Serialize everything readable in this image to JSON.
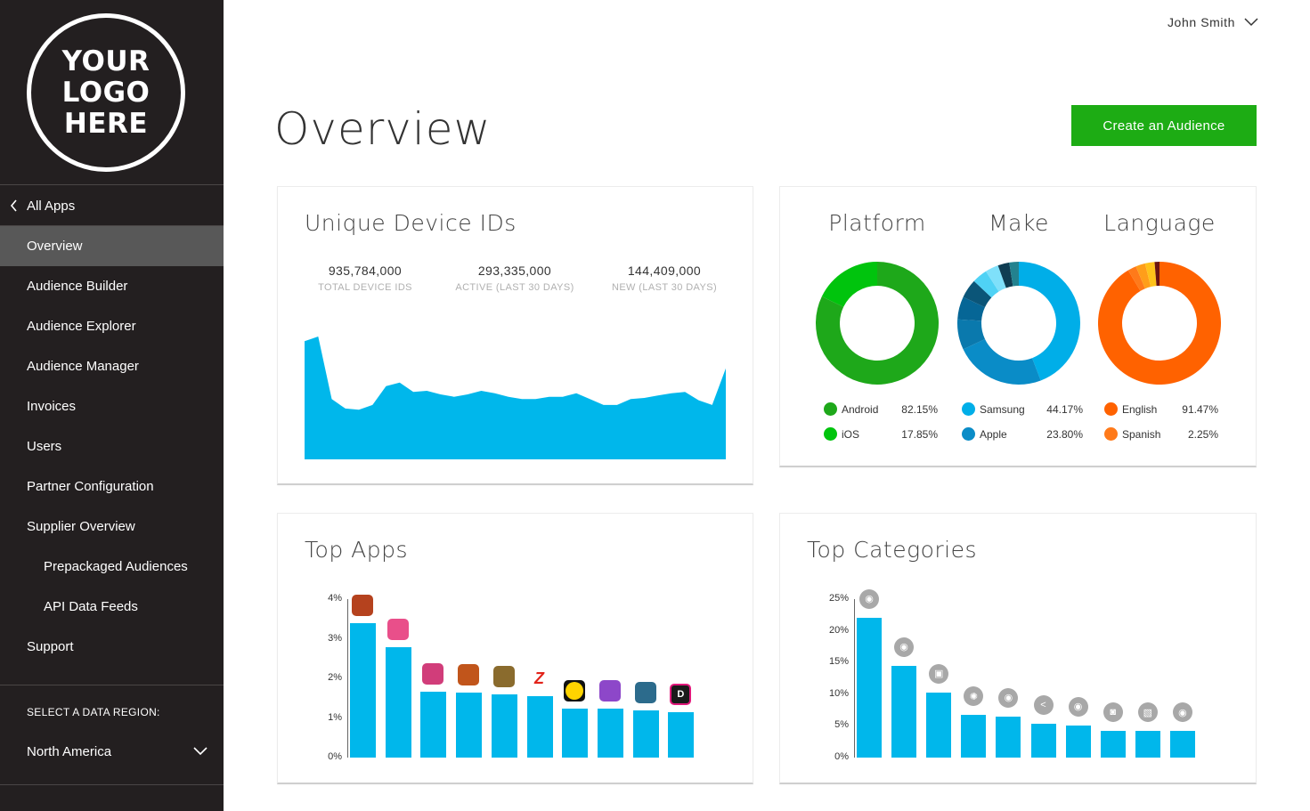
{
  "logo": {
    "text": "YOUR LOGO HERE"
  },
  "sidebar": {
    "back_label": "All Apps",
    "items": [
      {
        "label": "Overview",
        "active": true
      },
      {
        "label": "Audience Builder"
      },
      {
        "label": "Audience Explorer"
      },
      {
        "label": "Audience Manager"
      },
      {
        "label": "Invoices"
      },
      {
        "label": "Users"
      },
      {
        "label": "Partner Configuration"
      },
      {
        "label": "Supplier Overview"
      },
      {
        "label": "Prepackaged Audiences",
        "sub": true
      },
      {
        "label": "API Data Feeds",
        "sub": true
      },
      {
        "label": "Support"
      }
    ],
    "region_label": "SELECT A DATA REGION:",
    "region_value": "North America"
  },
  "header": {
    "user_name": "John Smith",
    "page_title": "Overview",
    "cta_label": "Create an Audience"
  },
  "colors": {
    "sidebar_bg": "#231f20",
    "accent_green": "#1dac14",
    "chart_blue": "#00b7eb",
    "android": "#1ea81a",
    "ios": "#00c40d",
    "samsung": "#00aee8",
    "apple": "#0a8cc7",
    "english": "#ff6200",
    "spanish": "#ff7a1a"
  },
  "unique_ids": {
    "title": "Unique Device IDs",
    "stats": [
      {
        "value": "935,784,000",
        "label": "TOTAL DEVICE IDS"
      },
      {
        "value": "293,335,000",
        "label": "ACTIVE (LAST 30 DAYS)"
      },
      {
        "value": "144,409,000",
        "label": "NEW (LAST 30 DAYS)"
      }
    ]
  },
  "breakdown": {
    "platform": {
      "title": "Platform",
      "items": [
        {
          "name": "Android",
          "pct": "82.15%"
        },
        {
          "name": "iOS",
          "pct": "17.85%"
        }
      ]
    },
    "make": {
      "title": "Make",
      "items": [
        {
          "name": "Samsung",
          "pct": "44.17%"
        },
        {
          "name": "Apple",
          "pct": "23.80%"
        }
      ]
    },
    "language": {
      "title": "Language",
      "items": [
        {
          "name": "English",
          "pct": "91.47%"
        },
        {
          "name": "Spanish",
          "pct": "2.25%"
        }
      ]
    }
  },
  "top_apps": {
    "title": "Top Apps",
    "icons": [
      "app-icon-1",
      "app-icon-2",
      "app-icon-3",
      "app-icon-4",
      "app-icon-5",
      "app-icon-6",
      "app-icon-7",
      "app-icon-8",
      "app-icon-9",
      "app-icon-10"
    ]
  },
  "top_categories": {
    "title": "Top Categories",
    "icons": [
      "gamepad-icon",
      "gamepad-icon",
      "tablet-icon",
      "gear-icon",
      "gamepad-icon",
      "share-icon",
      "gamepad-icon",
      "camera-icon",
      "image-icon",
      "gamepad-icon"
    ]
  },
  "chart_data": [
    {
      "type": "area",
      "x": [
        1,
        2,
        3,
        4,
        5,
        6,
        7,
        8,
        9,
        10,
        11,
        12,
        13,
        14,
        15,
        16,
        17,
        18,
        19,
        20,
        21,
        22,
        23,
        24,
        25,
        26,
        27,
        28,
        29,
        30,
        31,
        32
      ],
      "values": [
        100,
        104,
        51,
        43,
        42,
        46,
        62,
        65,
        57,
        58,
        55,
        53,
        55,
        58,
        56,
        53,
        51,
        51,
        53,
        53,
        56,
        51,
        46,
        46,
        51,
        52,
        54,
        56,
        57,
        50,
        46,
        77
      ],
      "title": "",
      "xlabel": "",
      "ylabel": "",
      "grid": false
    },
    {
      "type": "pie",
      "title": "Platform",
      "labels": [
        "Android",
        "iOS"
      ],
      "values": [
        82.15,
        17.85
      ],
      "colors": [
        "#1ea81a",
        "#00c40d"
      ]
    },
    {
      "type": "pie",
      "title": "Make",
      "labels": [
        "Samsung",
        "Apple",
        "",
        "",
        "",
        "",
        "",
        "",
        ""
      ],
      "values": [
        44.17,
        23.8,
        8,
        6,
        5,
        4,
        3.5,
        3,
        2.5
      ],
      "colors": [
        "#00aee8",
        "#0a8cc7",
        "#0a79ad",
        "#066696",
        "#0b5578",
        "#4fd2f5",
        "#7fe0fa",
        "#0f3d52",
        "#23828f"
      ]
    },
    {
      "type": "pie",
      "title": "Language",
      "labels": [
        "English",
        "Spanish",
        "",
        "",
        ""
      ],
      "values": [
        91.47,
        2.25,
        2.5,
        2.5,
        1.28
      ],
      "colors": [
        "#ff6200",
        "#ff7a1a",
        "#ff9e1a",
        "#ffc21a",
        "#6b1410"
      ]
    },
    {
      "type": "bar",
      "title": "Top Apps",
      "categories": [
        "1",
        "2",
        "3",
        "4",
        "5",
        "6",
        "7",
        "8",
        "9",
        "10"
      ],
      "values": [
        3.4,
        2.78,
        1.66,
        1.64,
        1.6,
        1.54,
        1.24,
        1.24,
        1.2,
        1.14
      ],
      "ylim": [
        0,
        4
      ],
      "yticks": [
        "0%",
        "1%",
        "2%",
        "3%",
        "4%"
      ],
      "grid": false
    },
    {
      "type": "bar",
      "title": "Top Categories",
      "categories": [
        "1",
        "2",
        "3",
        "4",
        "5",
        "6",
        "7",
        "8",
        "9",
        "10"
      ],
      "values": [
        22.1,
        14.5,
        10.3,
        6.7,
        6.5,
        5.4,
        5.1,
        4.2,
        4.2,
        4.2
      ],
      "ylim": [
        0,
        25
      ],
      "yticks": [
        "0%",
        "5%",
        "10%",
        "15%",
        "20%",
        "25%"
      ],
      "grid": false
    }
  ]
}
